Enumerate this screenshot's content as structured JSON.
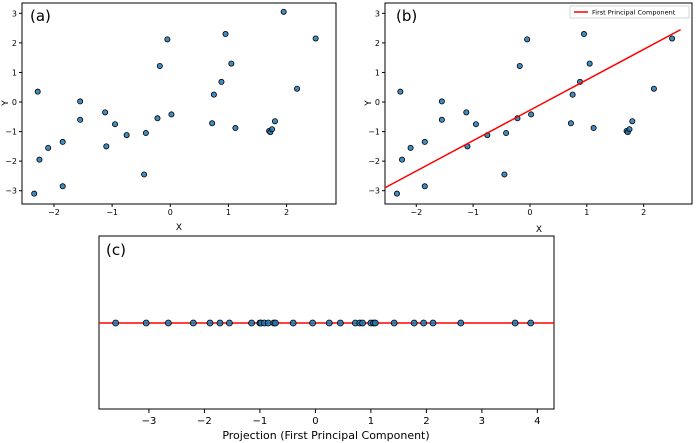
{
  "chart_data": [
    {
      "panel": "(a)",
      "type": "scatter",
      "xlabel": "X",
      "ylabel": "Y",
      "xlim": [
        -2.55,
        2.85
      ],
      "ylim": [
        -3.45,
        3.35
      ],
      "xticks": [
        -2,
        -1,
        0,
        1,
        2
      ],
      "yticks": [
        -3,
        -2,
        -1,
        0,
        1,
        2,
        3
      ],
      "points": [
        [
          -2.34,
          -3.1
        ],
        [
          -2.28,
          0.35
        ],
        [
          -2.25,
          -1.95
        ],
        [
          -2.1,
          -1.55
        ],
        [
          -1.85,
          -1.35
        ],
        [
          -1.85,
          -2.85
        ],
        [
          -1.55,
          0.02
        ],
        [
          -1.55,
          -0.6
        ],
        [
          -1.12,
          -0.35
        ],
        [
          -1.1,
          -1.5
        ],
        [
          -0.95,
          -0.75
        ],
        [
          -0.75,
          -1.12
        ],
        [
          -0.45,
          -2.45
        ],
        [
          -0.42,
          -1.05
        ],
        [
          -0.22,
          -0.55
        ],
        [
          -0.18,
          1.22
        ],
        [
          -0.05,
          2.12
        ],
        [
          0.02,
          -0.42
        ],
        [
          0.72,
          -0.72
        ],
        [
          0.75,
          0.25
        ],
        [
          0.88,
          0.68
        ],
        [
          0.95,
          2.3
        ],
        [
          1.05,
          1.3
        ],
        [
          1.12,
          -0.88
        ],
        [
          1.7,
          -0.98
        ],
        [
          1.72,
          -1.02
        ],
        [
          1.75,
          -0.92
        ],
        [
          1.8,
          -0.65
        ],
        [
          1.95,
          3.05
        ],
        [
          2.18,
          0.45
        ],
        [
          2.5,
          2.15
        ]
      ]
    },
    {
      "panel": "(b)",
      "type": "scatter",
      "xlabel": "X",
      "ylabel": "Y",
      "xlim": [
        -2.55,
        2.85
      ],
      "ylim": [
        -3.45,
        3.35
      ],
      "xticks": [
        -2,
        -1,
        0,
        1,
        2
      ],
      "yticks": [
        -3,
        -2,
        -1,
        0,
        1,
        2,
        3
      ],
      "legend": "First Principal Component",
      "legend_loc": "upper-right",
      "line": [
        [
          -2.55,
          -2.9
        ],
        [
          2.65,
          2.45
        ]
      ],
      "points": [
        [
          -2.34,
          -3.1
        ],
        [
          -2.28,
          0.35
        ],
        [
          -2.25,
          -1.95
        ],
        [
          -2.1,
          -1.55
        ],
        [
          -1.85,
          -1.35
        ],
        [
          -1.85,
          -2.85
        ],
        [
          -1.55,
          0.02
        ],
        [
          -1.55,
          -0.6
        ],
        [
          -1.12,
          -0.35
        ],
        [
          -1.1,
          -1.5
        ],
        [
          -0.95,
          -0.75
        ],
        [
          -0.75,
          -1.12
        ],
        [
          -0.45,
          -2.45
        ],
        [
          -0.42,
          -1.05
        ],
        [
          -0.22,
          -0.55
        ],
        [
          -0.18,
          1.22
        ],
        [
          -0.05,
          2.12
        ],
        [
          0.02,
          -0.42
        ],
        [
          0.72,
          -0.72
        ],
        [
          0.75,
          0.25
        ],
        [
          0.88,
          0.68
        ],
        [
          0.95,
          2.3
        ],
        [
          1.05,
          1.3
        ],
        [
          1.12,
          -0.88
        ],
        [
          1.7,
          -0.98
        ],
        [
          1.72,
          -1.02
        ],
        [
          1.75,
          -0.92
        ],
        [
          1.8,
          -0.65
        ],
        [
          1.95,
          3.05
        ],
        [
          2.18,
          0.45
        ],
        [
          2.5,
          2.15
        ]
      ]
    },
    {
      "panel": "(c)",
      "type": "scatter",
      "xlabel": "Projection (First Principal Component)",
      "xlim": [
        -3.9,
        4.3
      ],
      "xticks": [
        -3,
        -2,
        -1,
        0,
        1,
        2,
        3,
        4
      ],
      "values": [
        -3.6,
        -3.05,
        -2.65,
        -2.2,
        -1.9,
        -1.72,
        -1.55,
        -1.15,
        -1.0,
        -0.98,
        -0.92,
        -0.85,
        -0.75,
        -0.72,
        -0.4,
        -0.05,
        0.25,
        0.45,
        0.72,
        0.8,
        0.85,
        1.0,
        1.05,
        1.08,
        1.42,
        1.78,
        1.95,
        2.12,
        2.62,
        3.6,
        3.88
      ]
    }
  ],
  "colors": {
    "points": "#1f77b4",
    "line": "#ff0000"
  }
}
